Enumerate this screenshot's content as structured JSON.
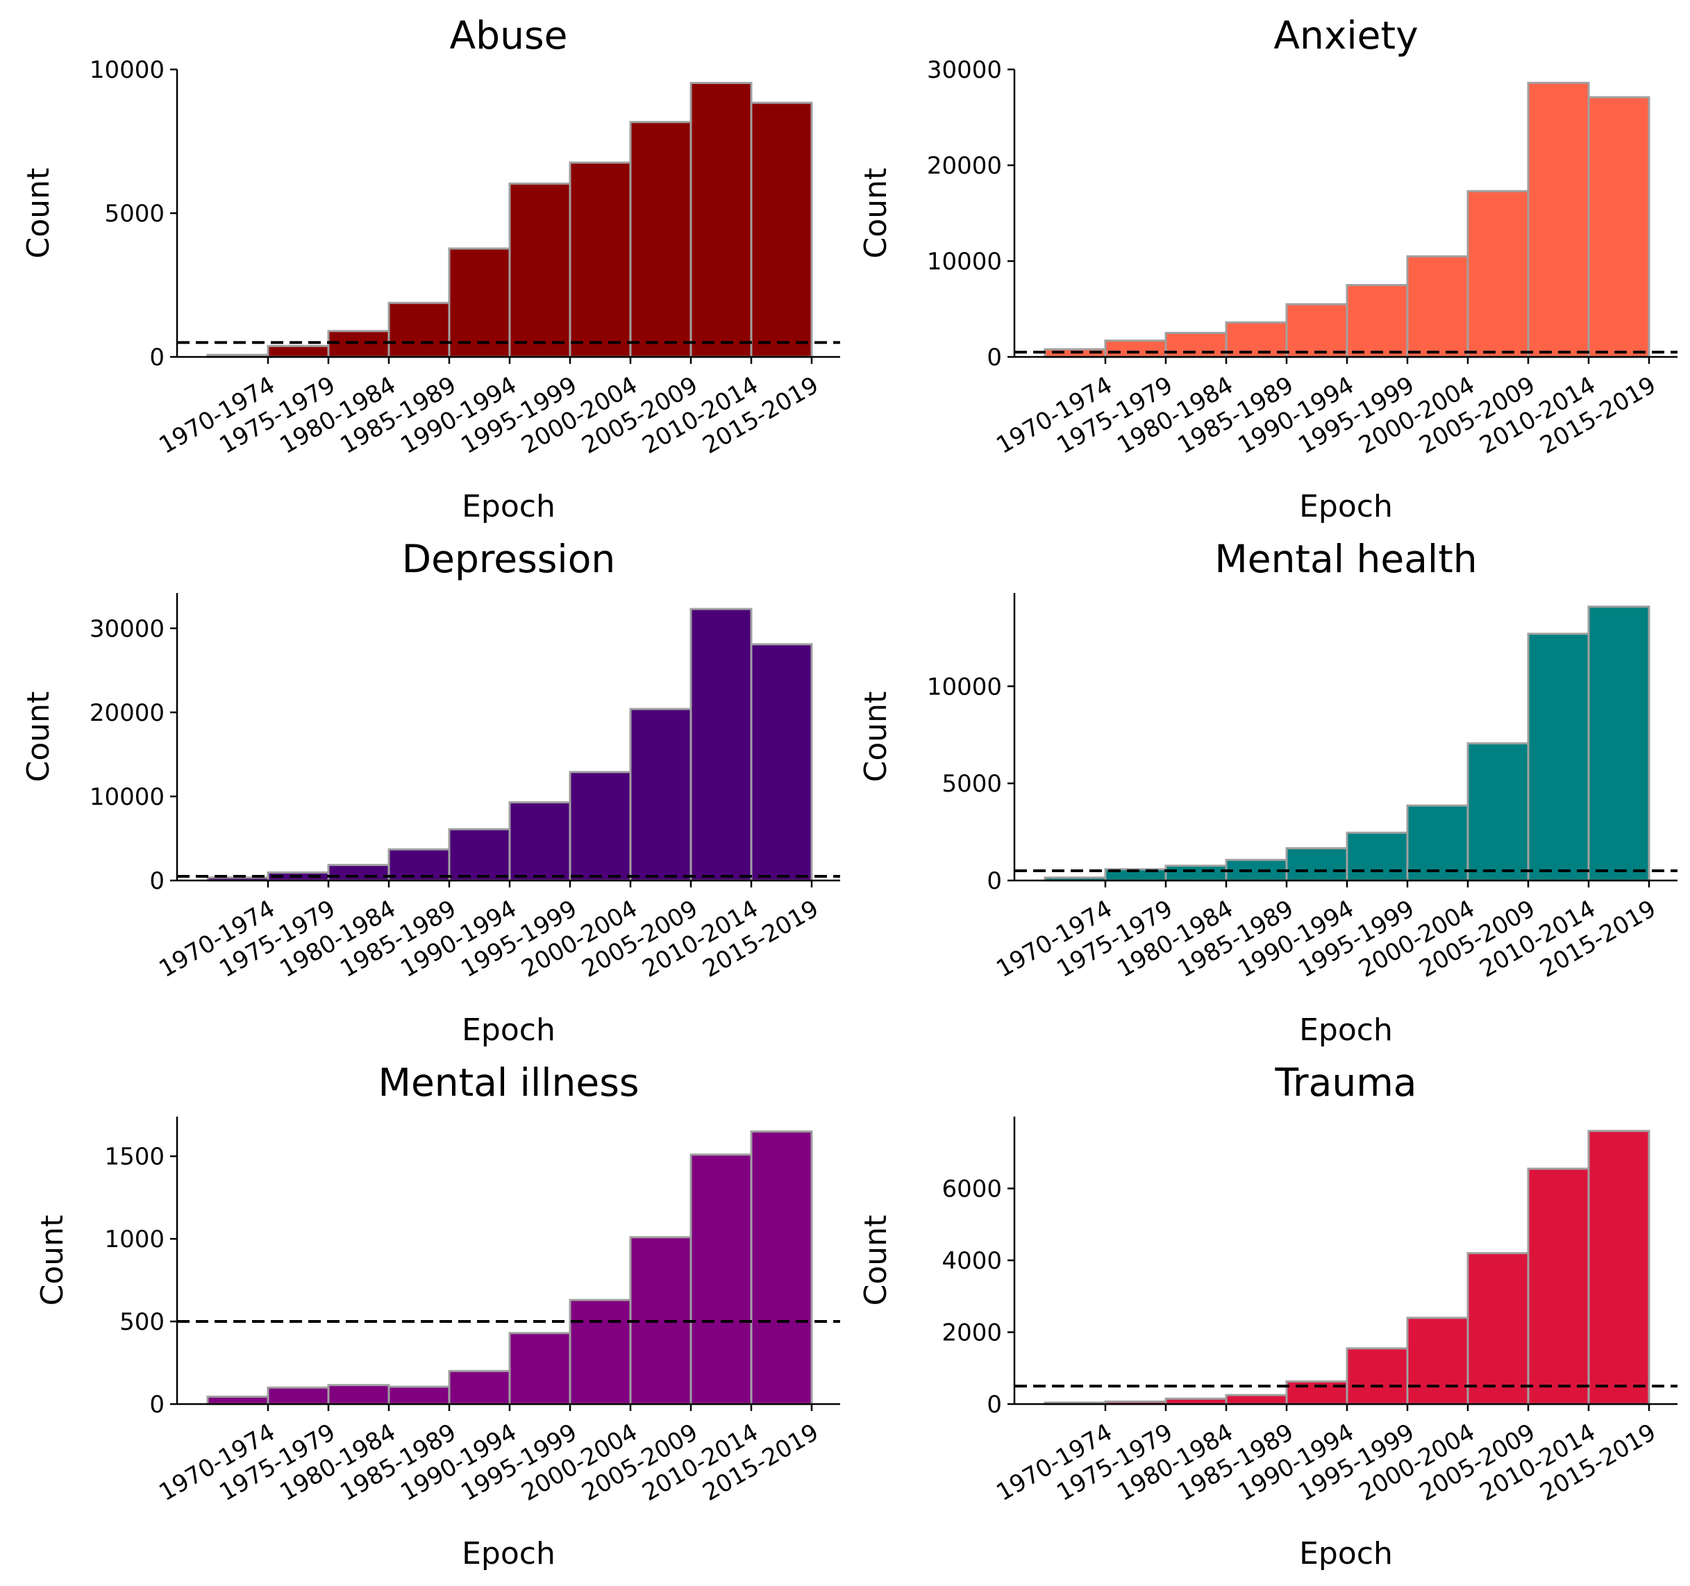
{
  "chart_data": [
    {
      "type": "bar",
      "title": "Abuse",
      "xlabel": "Epoch",
      "ylabel": "Count",
      "color": "#8b0000",
      "categories": [
        "1970-1974",
        "1975-1979",
        "1980-1984",
        "1985-1989",
        "1990-1994",
        "1995-1999",
        "2000-2004",
        "2005-2009",
        "2010-2014",
        "2015-2019"
      ],
      "values": [
        70,
        380,
        900,
        1880,
        3770,
        6030,
        6760,
        8170,
        9530,
        8840
      ],
      "ylim": [
        0,
        10000
      ],
      "yticks": [
        0,
        5000,
        10000
      ],
      "hline": 500
    },
    {
      "type": "bar",
      "title": "Anxiety",
      "xlabel": "Epoch",
      "ylabel": "Count",
      "color": "#ff6347",
      "categories": [
        "1970-1974",
        "1975-1979",
        "1980-1984",
        "1985-1989",
        "1990-1994",
        "1995-1999",
        "2000-2004",
        "2005-2009",
        "2010-2014",
        "2015-2019"
      ],
      "values": [
        800,
        1700,
        2500,
        3600,
        5500,
        7500,
        10500,
        17300,
        28600,
        27100
      ],
      "ylim": [
        0,
        30000
      ],
      "yticks": [
        0,
        10000,
        20000,
        30000
      ],
      "hline": 500
    },
    {
      "type": "bar",
      "title": "Depression",
      "xlabel": "Epoch",
      "ylabel": "Count",
      "color": "#4b0078",
      "categories": [
        "1970-1974",
        "1975-1979",
        "1980-1984",
        "1985-1989",
        "1990-1994",
        "1995-1999",
        "2000-2004",
        "2005-2009",
        "2010-2014",
        "2015-2019"
      ],
      "values": [
        350,
        950,
        1850,
        3700,
        6100,
        9300,
        12900,
        20400,
        32300,
        28100
      ],
      "ylim": [
        0,
        34200
      ],
      "yticks": [
        0,
        10000,
        20000,
        30000
      ],
      "hline": 500
    },
    {
      "type": "bar",
      "title": "Mental health",
      "xlabel": "Epoch",
      "ylabel": "Count",
      "color": "#008080",
      "categories": [
        "1970-1974",
        "1975-1979",
        "1980-1984",
        "1985-1989",
        "1990-1994",
        "1995-1999",
        "2000-2004",
        "2005-2009",
        "2010-2014",
        "2015-2019"
      ],
      "values": [
        150,
        580,
        760,
        1060,
        1660,
        2460,
        3860,
        7060,
        12700,
        14100
      ],
      "ylim": [
        0,
        14800
      ],
      "yticks": [
        0,
        5000,
        10000
      ],
      "hline": 500
    },
    {
      "type": "bar",
      "title": "Mental illness",
      "xlabel": "Epoch",
      "ylabel": "Count",
      "color": "#800080",
      "categories": [
        "1970-1974",
        "1975-1979",
        "1980-1984",
        "1985-1989",
        "1990-1994",
        "1995-1999",
        "2000-2004",
        "2005-2009",
        "2010-2014",
        "2015-2019"
      ],
      "values": [
        45,
        100,
        115,
        105,
        200,
        430,
        630,
        1010,
        1510,
        1650
      ],
      "ylim": [
        0,
        1740
      ],
      "yticks": [
        0,
        500,
        1000,
        1500
      ],
      "hline": 500
    },
    {
      "type": "bar",
      "title": "Trauma",
      "xlabel": "Epoch",
      "ylabel": "Count",
      "color": "#dc143c",
      "categories": [
        "1970-1974",
        "1975-1979",
        "1980-1984",
        "1985-1989",
        "1990-1994",
        "1995-1999",
        "2000-2004",
        "2005-2009",
        "2010-2014",
        "2015-2019"
      ],
      "values": [
        40,
        70,
        150,
        250,
        630,
        1550,
        2400,
        4200,
        6550,
        7600
      ],
      "ylim": [
        0,
        8000
      ],
      "yticks": [
        0,
        2000,
        4000,
        6000
      ],
      "hline": 500
    }
  ]
}
